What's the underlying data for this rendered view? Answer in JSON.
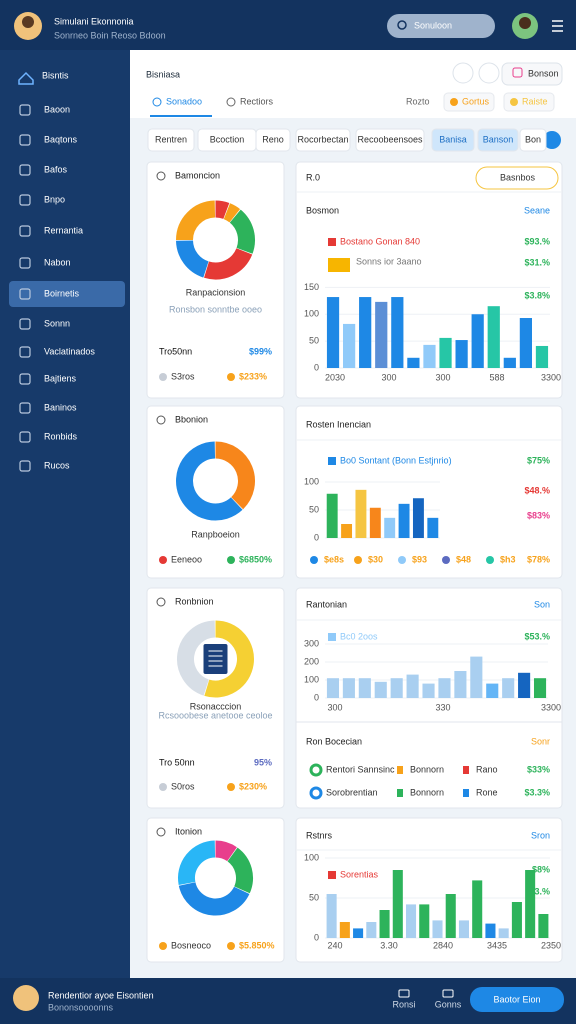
{
  "header": {
    "title": "Simulani Ekonnonia",
    "subtitle": "Sonrneo Boin Reoso Bdoon",
    "search": "Sonuloon"
  },
  "sidebar": {
    "title": "Bisntis",
    "items": [
      {
        "text": "Baoon"
      },
      {
        "text": "Baqtons"
      },
      {
        "text": "Bafos"
      },
      {
        "text": "Bnpo"
      },
      {
        "text": "Rernantia"
      },
      {
        "text": "Nabon"
      },
      {
        "text": "Boirnetis",
        "active": true
      },
      {
        "text": "Sonnn"
      },
      {
        "text": "Vaclatinados"
      },
      {
        "text": "Bajtiens"
      },
      {
        "text": "Baninos"
      },
      {
        "text": "Ronbids"
      },
      {
        "text": "Rucos"
      }
    ]
  },
  "main": {
    "title": "Bisniasa",
    "button": "Bonson",
    "tabs": [
      {
        "text": "Sonadoo",
        "active": true
      },
      {
        "text": "Rectiors"
      }
    ],
    "tab_tools": [
      {
        "text": "Rozto"
      },
      {
        "text": "Gortus",
        "color": "#f7a21b"
      },
      {
        "text": "Raiste",
        "color": "#f5c542"
      }
    ],
    "chips": [
      {
        "text": "Rentren"
      },
      {
        "text": "Bcoction"
      },
      {
        "text": "Reno"
      },
      {
        "text": "Rocorbectan"
      },
      {
        "text": "Recoobeensoes"
      },
      {
        "text": "Banisa",
        "active": true
      },
      {
        "text": "Banson",
        "active": true
      },
      {
        "text": "Bon"
      }
    ]
  },
  "panels": [
    {
      "left": {
        "title": "Bamoncion",
        "donut": [
          {
            "value": 6,
            "color": "#e53935"
          },
          {
            "value": 5,
            "color": "#f7a21b"
          },
          {
            "value": 20,
            "color": "#2db35b"
          },
          {
            "value": 24,
            "color": "#e53935"
          },
          {
            "value": 20,
            "color": "#1e88e5"
          },
          {
            "value": 25,
            "color": "#f7a21b"
          }
        ],
        "caption": "Ranpacionsion",
        "note": "Ronsbon sonntbe ooeo",
        "big": "Tro50nn",
        "big_pct": {
          "text": "$99%",
          "color": "#1e88e5"
        },
        "stats": [
          {
            "text": "S3ros",
            "color": "#c7cdd6"
          },
          {
            "text": "$233%",
            "color": "#f7a21b"
          }
        ]
      },
      "right": {
        "head": "R.0",
        "dropdown": "Basnbos",
        "title": "Bosmon",
        "link": "Seane",
        "legend": [
          {
            "text": "Bostano Gonan 840",
            "color": "#e53935"
          },
          {
            "text": "Sonns ior 3aano",
            "color": "#f7b500"
          }
        ],
        "side": [
          {
            "text": "$93.%",
            "color": "#2db35b"
          },
          {
            "text": "$31.%",
            "color": "#2db35b"
          },
          {
            "text": "$3.8%",
            "color": "#2db35b"
          }
        ],
        "chart": {
          "ylim": [
            0,
            160
          ],
          "yticks": [
            0,
            50,
            100,
            150
          ],
          "xlabels": [
            "2030",
            "300",
            "300",
            "588",
            "3300"
          ],
          "bars": [
            {
              "value": 132,
              "color": "#1e88e5"
            },
            {
              "value": 82,
              "color": "#90caf9"
            },
            {
              "value": 132,
              "color": "#1e88e5"
            },
            {
              "value": 123,
              "color": "#5c8fd6"
            },
            {
              "value": 132,
              "color": "#1e88e5"
            },
            {
              "value": 19,
              "color": "#1e88e5"
            },
            {
              "value": 43,
              "color": "#90caf9"
            },
            {
              "value": 56,
              "color": "#26c6a6"
            },
            {
              "value": 52,
              "color": "#1e88e5"
            },
            {
              "value": 100,
              "color": "#1e88e5"
            },
            {
              "value": 115,
              "color": "#26c6a6"
            },
            {
              "value": 19,
              "color": "#1e88e5"
            },
            {
              "value": 93,
              "color": "#1e88e5"
            },
            {
              "value": 41,
              "color": "#26c6a6"
            }
          ]
        }
      }
    },
    {
      "left": {
        "title": "Bbonion",
        "donut": [
          {
            "value": 38,
            "color": "#f7861b"
          },
          {
            "value": 62,
            "color": "#1e88e5"
          }
        ],
        "caption": "Ranpboeion",
        "stats": [
          {
            "text": "Eeneoo",
            "color": "#e53935"
          },
          {
            "text": "$6850%",
            "color": "#2db35b"
          }
        ]
      },
      "right": {
        "title": "Rosten Inencian",
        "legend": [
          {
            "text": "Bo0 Sontant (Bonn Estjnrio)",
            "color": "#1e88e5"
          }
        ],
        "side": [
          {
            "text": "$75%",
            "color": "#2db35b"
          },
          {
            "text": "$48.%",
            "color": "#e53935"
          },
          {
            "text": "$83%",
            "color": "#e83e8c"
          },
          {
            "text": "$78%",
            "color": "#f7a21b"
          }
        ],
        "chart": {
          "ylim": [
            0,
            100
          ],
          "yticks": [
            0,
            50,
            100
          ],
          "bars": [
            {
              "value": 79,
              "color": "#2db35b"
            },
            {
              "value": 25,
              "color": "#f7a21b"
            },
            {
              "value": 86,
              "color": "#f5c542"
            },
            {
              "value": 54,
              "color": "#f7861b"
            },
            {
              "value": 36,
              "color": "#90caf9"
            },
            {
              "value": 61,
              "color": "#1e88e5"
            },
            {
              "value": 71,
              "color": "#1565c0"
            },
            {
              "value": 36,
              "color": "#1e88e5"
            }
          ]
        },
        "bottom": [
          {
            "text": "$e8s",
            "color": "#1e88e5"
          },
          {
            "text": "$30",
            "color": "#f7a21b"
          },
          {
            "text": "$93",
            "color": "#90caf9"
          },
          {
            "text": "$48",
            "color": "#5c6bc0"
          },
          {
            "text": "$h3",
            "color": "#26c6a6"
          }
        ]
      }
    },
    {
      "left": {
        "title": "Ronbnion",
        "donut": [
          {
            "value": 55,
            "color": "#f5d033"
          },
          {
            "value": 45,
            "color": "#d7dee6"
          }
        ],
        "caption": "Rsonacccion",
        "note": "Rcsooobese anetooe ceoloe",
        "big": "Tro 50nn",
        "big_pct": {
          "text": "95%",
          "color": "#5c6bc0"
        },
        "stats": [
          {
            "text": "S0ros",
            "color": "#c7cdd6"
          },
          {
            "text": "$230%",
            "color": "#f7a21b"
          }
        ]
      },
      "right": {
        "title": "Rantonian",
        "link": "Son",
        "legend": [
          {
            "text": "Bc0 2oos",
            "color": "#90caf9"
          }
        ],
        "side": [
          {
            "text": "$53.%",
            "color": "#2db35b"
          }
        ],
        "chart": {
          "ylim": [
            0,
            300
          ],
          "yticks": [
            0,
            100,
            200,
            300
          ],
          "xlabels": [
            "300",
            "330",
            "3300"
          ],
          "bars": [
            {
              "value": 110,
              "color": "#a9cff0"
            },
            {
              "value": 110,
              "color": "#a9cff0"
            },
            {
              "value": 110,
              "color": "#a9cff0"
            },
            {
              "value": 90,
              "color": "#a9cff0"
            },
            {
              "value": 110,
              "color": "#a9cff0"
            },
            {
              "value": 130,
              "color": "#a9cff0"
            },
            {
              "value": 80,
              "color": "#a9cff0"
            },
            {
              "value": 110,
              "color": "#a9cff0"
            },
            {
              "value": 150,
              "color": "#a9cff0"
            },
            {
              "value": 230,
              "color": "#a9cff0"
            },
            {
              "value": 80,
              "color": "#64b5f6"
            },
            {
              "value": 110,
              "color": "#a9cff0"
            },
            {
              "value": 140,
              "color": "#1565c0"
            },
            {
              "value": 110,
              "color": "#2db35b"
            }
          ]
        },
        "section": {
          "title": "Ron Bocecian",
          "link": "Sonr",
          "rows": [
            {
              "cells": [
                {
                  "text": "Rentori Sannsinc",
                  "color": "#2db35b"
                },
                {
                  "text": "Bonnorn",
                  "color": "#f7a21b"
                },
                {
                  "text": "Rano",
                  "color": "#e53935"
                }
              ],
              "pct": "$33%"
            },
            {
              "cells": [
                {
                  "text": "Sorobrentian",
                  "color": "#1e88e5"
                },
                {
                  "text": "Bonnorn",
                  "color": "#2db35b"
                },
                {
                  "text": "Rone",
                  "color": "#1e88e5"
                }
              ],
              "pct": "$3.3%"
            }
          ]
        }
      }
    },
    {
      "left": {
        "title": "Itonion",
        "donut": [
          {
            "value": 10,
            "color": "#e83e8c"
          },
          {
            "value": 22,
            "color": "#2db35b"
          },
          {
            "value": 40,
            "color": "#1e88e5"
          },
          {
            "value": 28,
            "color": "#29b6f6"
          }
        ],
        "stats": [
          {
            "text": "Bosneoco",
            "color": "#f7a21b"
          },
          {
            "text": "$5.850%",
            "color": "#f7a21b"
          }
        ]
      },
      "right": {
        "title": "Rstnrs",
        "link": "Sron",
        "legend": [
          {
            "text": "Sorentias",
            "color": "#e53935"
          }
        ],
        "side": [
          {
            "text": "$8%",
            "color": "#2db35b"
          },
          {
            "text": "$3.%",
            "color": "#2db35b"
          }
        ],
        "chart": {
          "ylim": [
            0,
            100
          ],
          "yticks": [
            0,
            50,
            100
          ],
          "xlabels": [
            "240",
            "3.30",
            "2840",
            "3435",
            "2350"
          ],
          "bars": [
            {
              "value": 55,
              "color": "#a9cff0"
            },
            {
              "value": 20,
              "color": "#f7a21b"
            },
            {
              "value": 12,
              "color": "#1e88e5"
            },
            {
              "value": 20,
              "color": "#a9cff0"
            },
            {
              "value": 35,
              "color": "#2db35b"
            },
            {
              "value": 85,
              "color": "#2db35b"
            },
            {
              "value": 42,
              "color": "#a9cff0"
            },
            {
              "value": 42,
              "color": "#2db35b"
            },
            {
              "value": 22,
              "color": "#a9cff0"
            },
            {
              "value": 55,
              "color": "#2db35b"
            },
            {
              "value": 22,
              "color": "#a9cff0"
            },
            {
              "value": 72,
              "color": "#2db35b"
            },
            {
              "value": 18,
              "color": "#1e88e5"
            },
            {
              "value": 12,
              "color": "#a9cff0"
            },
            {
              "value": 45,
              "color": "#2db35b"
            },
            {
              "value": 85,
              "color": "#2db35b"
            },
            {
              "value": 30,
              "color": "#2db35b"
            }
          ]
        }
      }
    }
  ],
  "footer": {
    "title": "Rendentior ayoe Eisontien",
    "subtitle": "Bononsoooonns",
    "actions": [
      "Ronsi",
      "Gonns"
    ],
    "button": "Baotor Eion"
  }
}
